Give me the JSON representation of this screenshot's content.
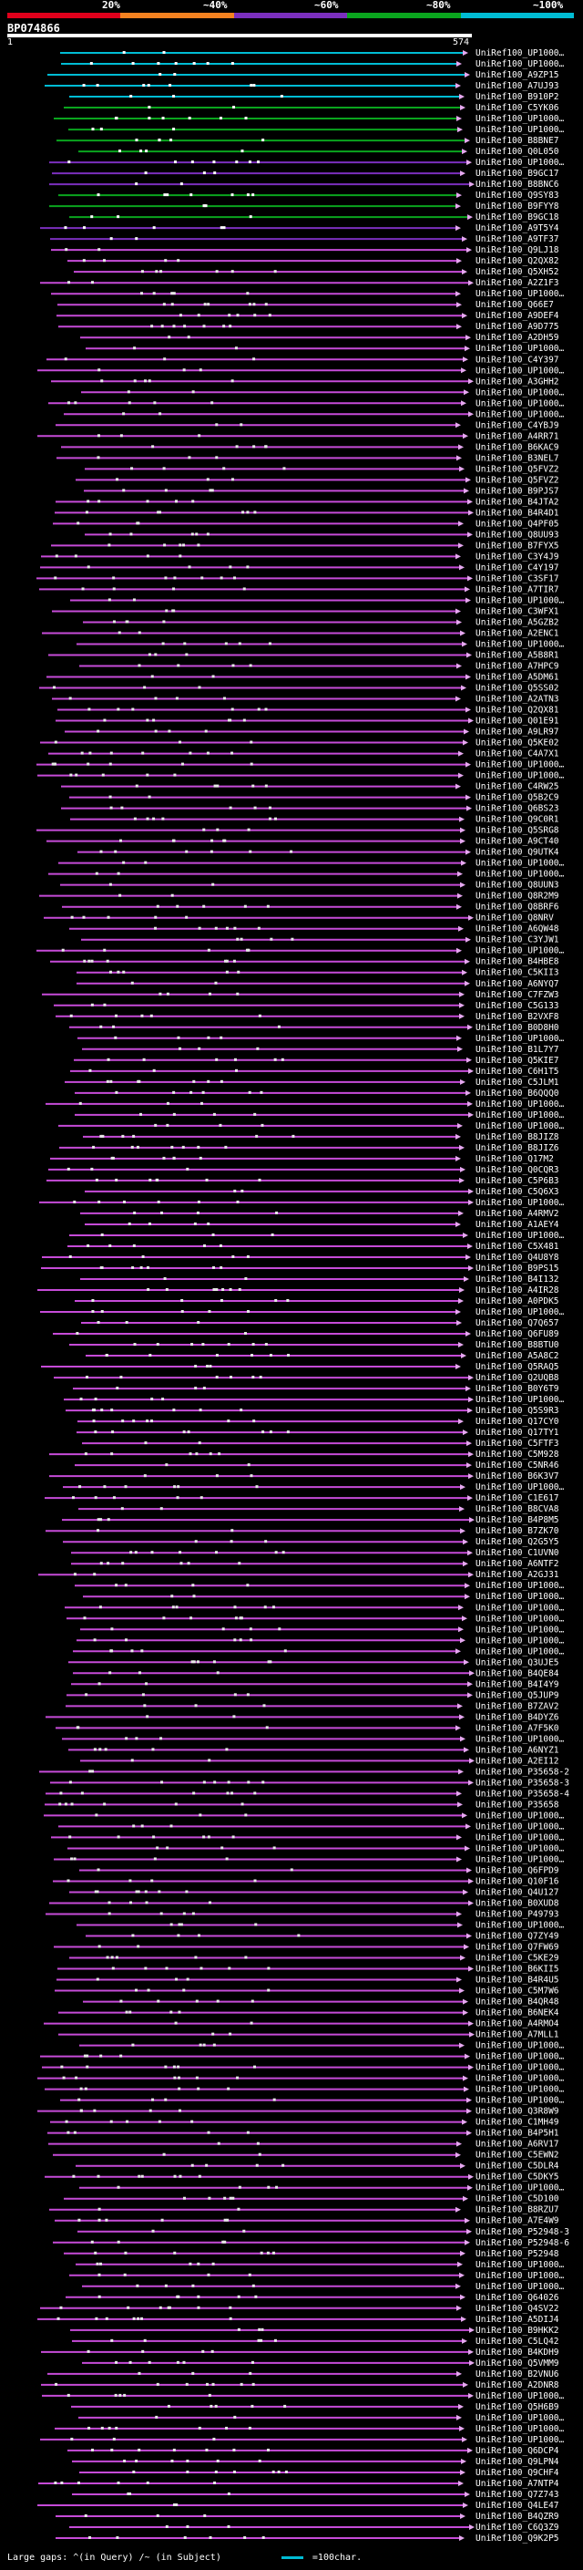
{
  "query": {
    "name": "BP074866",
    "start": "1",
    "end": "574"
  },
  "legend": {
    "labels": [
      "20%",
      "~40%",
      "~60%",
      "~80%",
      "~100%"
    ],
    "colors": [
      "#e0001b",
      "#f58220",
      "#7b2fbe",
      "#0aa51e",
      "#00bcd4"
    ]
  },
  "hits": [
    "UniRef100_UP1000…",
    "UniRef100_UP1000…",
    "UniRef100_A9ZP15",
    "UniRef100_A7UJ93",
    "UniRef100_B910P2",
    "UniRef100_C5YK06",
    "UniRef100_UP1000…",
    "UniRef100_UP1000…",
    "UniRef100_B8BNE7",
    "UniRef100_Q0L050",
    "UniRef100_UP1000…",
    "UniRef100_B9GC17",
    "UniRef100_B8BNC6",
    "UniRef100_Q9SY83",
    "UniRef100_B9FYY8",
    "UniRef100_B9GC18",
    "UniRef100_A9T5Y4",
    "UniRef100_A9TF37",
    "UniRef100_Q9LJ18",
    "UniRef100_Q2QX82",
    "UniRef100_Q5XH52",
    "UniRef100_A2Z1F3",
    "UniRef100_UP1000…",
    "UniRef100_Q66E7",
    "UniRef100_A9DEF4",
    "UniRef100_A9D775",
    "UniRef100_A2DH59",
    "UniRef100_UP1000…",
    "UniRef100_C4Y397",
    "UniRef100_UP1000…",
    "UniRef100_A3GHH2",
    "UniRef100_UP1000…",
    "UniRef100_UP1000…",
    "UniRef100_UP1000…",
    "UniRef100_C4YBJ9",
    "UniRef100_A4RR71",
    "UniRef100_B6KAC9",
    "UniRef100_B3NEL7",
    "UniRef100_Q5FVZ2",
    "UniRef100_Q5FVZ2",
    "UniRef100_B9PJS7",
    "UniRef100_B4JTA2",
    "UniRef100_B4R4D1",
    "UniRef100_Q4PF05",
    "UniRef100_Q8UU93",
    "UniRef100_B7FYX5",
    "UniRef100_C3Y4J9",
    "UniRef100_C4Y197",
    "UniRef100_C3SF17",
    "UniRef100_A7TIR7",
    "UniRef100_UP1000…",
    "UniRef100_C3WFX1",
    "UniRef100_A5GZB2",
    "UniRef100_A2ENC1",
    "UniRef100_UP1000…",
    "UniRef100_A5B8R1",
    "UniRef100_A7HPC9",
    "UniRef100_A5DM61",
    "UniRef100_Q5SS02",
    "UniRef100_A2ATN3",
    "UniRef100_Q2QX81",
    "UniRef100_Q01E91",
    "UniRef100_A9LR97",
    "UniRef100_Q5KE02",
    "UniRef100_C4A7X1",
    "UniRef100_UP1000…",
    "UniRef100_UP1000…",
    "UniRef100_C4RW25",
    "UniRef100_Q5B2C9",
    "UniRef100_Q6BS23",
    "UniRef100_Q9C0R1",
    "UniRef100_Q5SRG8",
    "UniRef100_A9CT40",
    "UniRef100_Q9UTK4",
    "UniRef100_UP1000…",
    "UniRef100_UP1000…",
    "UniRef100_Q8UUN3",
    "UniRef100_Q8R2M9",
    "UniRef100_Q8BRF6",
    "UniRef100_Q8NRV",
    "UniRef100_A6QW48",
    "UniRef100_C3YJW1",
    "UniRef100_UP1000…",
    "UniRef100_B4HBE8",
    "UniRef100_C5KII3",
    "UniRef100_A6NYQ7",
    "UniRef100_C7FZW3",
    "UniRef100_C5G133",
    "UniRef100_B2VXF8",
    "UniRef100_B0D8H0",
    "UniRef100_UP1000…",
    "UniRef100_B1L7Y7",
    "UniRef100_Q5KIE7",
    "UniRef100_C6H1T5",
    "UniRef100_C5JLM1",
    "UniRef100_B6QQQ0",
    "UniRef100_UP1000…",
    "UniRef100_UP1000…",
    "UniRef100_UP1000…",
    "UniRef100_B8JIZ8",
    "UniRef100_B8JIZ6",
    "UniRef100_Q17M2",
    "UniRef100_Q0CQR3",
    "UniRef100_C5P6B3",
    "UniRef100_C5Q6X3",
    "UniRef100_UP1000…",
    "UniRef100_A4RMV2",
    "UniRef100_A1AEY4",
    "UniRef100_UP1000…",
    "UniRef100_C5X481",
    "UniRef100_Q4U8Y8",
    "UniRef100_B9PS15",
    "UniRef100_B4I132",
    "UniRef100_A4IR28",
    "UniRef100_A0PDK5",
    "UniRef100_UP1000…",
    "UniRef100_Q7Q657",
    "UniRef100_Q6FU89",
    "UniRef100_B8BTU0",
    "UniRef100_A5A8C2",
    "UniRef100_Q5RAQ5",
    "UniRef100_Q2UQB8",
    "UniRef100_B0Y6T9",
    "UniRef100_UP1000…",
    "UniRef100_Q5S9R3",
    "UniRef100_Q17CY0",
    "UniRef100_Q17TY1",
    "UniRef100_C5FTF3",
    "UniRef100_C5M928",
    "UniRef100_C5NR46",
    "UniRef100_B6K3V7",
    "UniRef100_UP1000…",
    "UniRef100_C1E617",
    "UniRef100_B8CVA8",
    "UniRef100_B4P8M5",
    "UniRef100_B7ZK70",
    "UniRef100_Q2G5Y5",
    "UniRef100_C1UVN0",
    "UniRef100_A6NTF2",
    "UniRef100_A2GJ31",
    "UniRef100_UP1000…",
    "UniRef100_UP1000…",
    "UniRef100_UP1000…",
    "UniRef100_UP1000…",
    "UniRef100_UP1000…",
    "UniRef100_UP1000…",
    "UniRef100_UP1000…",
    "UniRef100_Q3UJE5",
    "UniRef100_B4QE84",
    "UniRef100_B4I4Y9",
    "UniRef100_Q5JUP9",
    "UniRef100_B7ZAV2",
    "UniRef100_B4DYZ6",
    "UniRef100_A7F5K0",
    "UniRef100_UP1000…",
    "UniRef100_A6NYZ1",
    "UniRef100_A2EI12",
    "UniRef100_P35658-2",
    "UniRef100_P35658-3",
    "UniRef100_P35658-4",
    "UniRef100_P35658",
    "UniRef100_UP1000…",
    "UniRef100_UP1000…",
    "UniRef100_UP1000…",
    "UniRef100_UP1000…",
    "UniRef100_UP1000…",
    "UniRef100_Q6FPD9",
    "UniRef100_Q10F16",
    "UniRef100_Q4U127",
    "UniRef100_B0XUD8",
    "UniRef100_P49793",
    "UniRef100_UP1000…",
    "UniRef100_Q7ZY49",
    "UniRef100_Q7FW69",
    "UniRef100_C5KE29",
    "UniRef100_B6KII5",
    "UniRef100_B4R4U5",
    "UniRef100_C5M7W6",
    "UniRef100_B4QR48",
    "UniRef100_B6NEK4",
    "UniRef100_A4RMO4",
    "UniRef100_A7MLL1",
    "UniRef100_UP1000…",
    "UniRef100_UP1000…",
    "UniRef100_UP1000…",
    "UniRef100_UP1000…",
    "UniRef100_UP1000…",
    "UniRef100_UP1000…",
    "UniRef100_Q3R8W9",
    "UniRef100_C1MH49",
    "UniRef100_B4P5H1",
    "UniRef100_A6RV17",
    "UniRef100_C5EWN2",
    "UniRef100_C5DLR4",
    "UniRef100_C5DKY5",
    "UniRef100_UP1000…",
    "UniRef100_C5D100",
    "UniRef100_B8RZU7",
    "UniRef100_A7E4W9",
    "UniRef100_P52948-3",
    "UniRef100_P52948-6",
    "UniRef100_P52948",
    "UniRef100_UP1000…",
    "UniRef100_UP1000…",
    "UniRef100_UP1000…",
    "UniRef100_Q64026",
    "UniRef100_Q4SV22",
    "UniRef100_A5DIJ4",
    "UniRef100_B9HKK2",
    "UniRef100_C5LQ42",
    "UniRef100_B4KDH9",
    "UniRef100_Q5VMM9",
    "UniRef100_B2VNU6",
    "UniRef100_A2DNR8",
    "UniRef100_UP1000…",
    "UniRef100_Q5H6B9",
    "UniRef100_UP1000…",
    "UniRef100_UP1000…",
    "UniRef100_UP1000…",
    "UniRef100_Q6DCP4",
    "UniRef100_Q9LPN4",
    "UniRef100_Q9CHF4",
    "UniRef100_A7NTP4",
    "UniRef100_Q7Z743",
    "UniRef100_Q4LE47",
    "UniRef100_B4QZR9",
    "UniRef100_C6Q3Z9",
    "UniRef100_Q9K2P5"
  ],
  "footer": {
    "gaps_label": "Large gaps:",
    "query_gap_legend": "^(in Query)",
    "subject_gap_legend": "/~ (in Subject)",
    "scale_label": "=100char."
  }
}
